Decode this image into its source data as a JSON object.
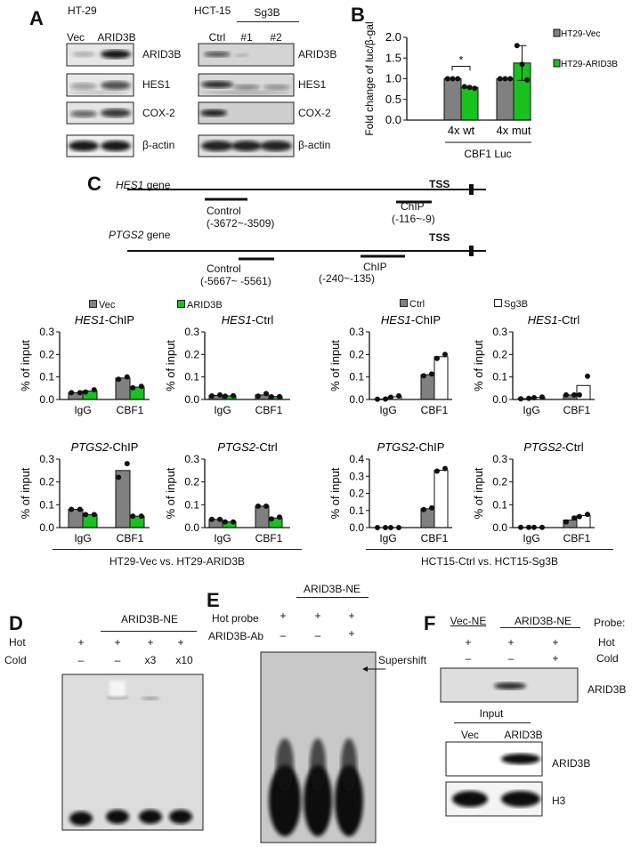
{
  "panel_labels": {
    "a": "A",
    "b": "B",
    "c": "C",
    "d": "D",
    "e": "E",
    "f": "F"
  },
  "panel_a": {
    "left": {
      "cell_line": "HT-29",
      "lanes": [
        "Vec",
        "ARID3B"
      ]
    },
    "right": {
      "cell_line": "HCT-15",
      "group": "Sg3B",
      "lanes": [
        "Ctrl",
        "#1",
        "#2"
      ]
    },
    "proteins": [
      "ARID3B",
      "HES1",
      "COX-2",
      "β-actin"
    ]
  },
  "panel_c": {
    "hes1": {
      "gene": "HES1",
      "suffix": " gene",
      "tss": "TSS",
      "control": "Control",
      "control_range": "(-3672~-3509)",
      "chip": "ChIP",
      "chip_range": "(-116~-9)"
    },
    "ptgs2": {
      "gene": "PTGS2",
      "suffix": " gene",
      "tss": "TSS",
      "control": "Control",
      "control_range": "(-5667~ -5561)",
      "chip": "ChIP",
      "chip_range": "(-240~-135)"
    },
    "legend_left": [
      "Vec",
      "ARID3B"
    ],
    "legend_right": [
      "Ctrl",
      "Sg3B"
    ],
    "group_left": "HT29-Vec vs. HT29-ARID3B",
    "group_right": "HCT15-Ctrl vs. HCT15-Sg3B"
  },
  "panel_d": {
    "group": "ARID3B-NE",
    "row_hot": "Hot",
    "row_cold": "Cold",
    "hot": [
      "+",
      "+",
      "+",
      "+"
    ],
    "cold": [
      "–",
      "–",
      "x3",
      "x10"
    ]
  },
  "panel_e": {
    "group": "ARID3B-NE",
    "row_hot": "Hot  probe",
    "row_ab": "ARID3B-Ab",
    "hot": [
      "+",
      "+",
      "+"
    ],
    "ab": [
      "–",
      "–",
      "+"
    ],
    "annotation": "Supershift"
  },
  "panel_f": {
    "vec_ne": "Vec-NE",
    "arid_ne": "ARID3B-NE",
    "probe": "Probe:",
    "row_hot": "Hot",
    "row_cold": "Cold",
    "hot": [
      "+",
      "+",
      "+"
    ],
    "cold": [
      "–",
      "–",
      "+"
    ],
    "blot_label": "ARID3B",
    "input": "Input",
    "input_lanes": [
      "Vec",
      "ARID3B"
    ],
    "input_proteins": [
      "ARID3B",
      "H3"
    ]
  },
  "colors": {
    "vec": "#808080",
    "arid3b": "#19c11f",
    "ctrl": "#808080",
    "sg3b": "#ffffff"
  },
  "chart_data": [
    {
      "type": "bar",
      "id": "b",
      "ylabel": "Fold change of luc/β-gal",
      "ylim": [
        0,
        2.0
      ],
      "yticks": [
        "0.0",
        "0.5",
        "1.0",
        "1.5",
        "2.0"
      ],
      "categories": [
        "4x wt",
        "4x mut"
      ],
      "xgroup_label": "CBF1 Luc",
      "legend": "right",
      "series": [
        {
          "name": "HT29-Vec",
          "color": "#808080",
          "values": [
            1.0,
            1.0
          ],
          "points": [
            [
              1,
              1,
              1
            ],
            [
              1,
              1,
              1
            ]
          ]
        },
        {
          "name": "HT29-ARID3B",
          "color": "#19c11f",
          "values": [
            0.79,
            1.38
          ],
          "points": [
            [
              0.81,
              0.79,
              0.77
            ],
            [
              1.8,
              1.35,
              0.97
            ]
          ],
          "error": [
            0,
            0.42
          ]
        }
      ],
      "significance": [
        {
          "category": "4x wt",
          "label": "*"
        }
      ]
    },
    {
      "type": "bar",
      "id": "c1",
      "title": "HES1-ChIP",
      "ylabel": "% of input",
      "ylim": [
        0,
        0.3
      ],
      "yticks": [
        "0.0",
        "0.1",
        "0.2",
        "0.3"
      ],
      "categories": [
        "IgG",
        "CBF1"
      ],
      "series": [
        {
          "name": "Vec",
          "color": "#808080",
          "values": [
            0.03,
            0.095
          ],
          "points": [
            [
              0.03,
              0.03
            ],
            [
              0.09,
              0.1
            ]
          ]
        },
        {
          "name": "ARID3B",
          "color": "#19c11f",
          "values": [
            0.038,
            0.055
          ],
          "points": [
            [
              0.033,
              0.043
            ],
            [
              0.052,
              0.058
            ]
          ]
        }
      ]
    },
    {
      "type": "bar",
      "id": "c2",
      "title": "HES1-Ctrl",
      "ylabel": "% of input",
      "ylim": [
        0,
        0.3
      ],
      "yticks": [
        "0.0",
        "0.1",
        "0.2",
        "0.3"
      ],
      "categories": [
        "IgG",
        "CBF1"
      ],
      "series": [
        {
          "name": "Vec",
          "color": "#808080",
          "values": [
            0.018,
            0.02
          ],
          "points": [
            [
              0.016,
              0.02
            ],
            [
              0.015,
              0.026
            ]
          ]
        },
        {
          "name": "ARID3B",
          "color": "#19c11f",
          "values": [
            0.016,
            0.013
          ],
          "points": [
            [
              0.015,
              0.017
            ],
            [
              0.012,
              0.013
            ]
          ]
        }
      ]
    },
    {
      "type": "bar",
      "id": "c3",
      "title": "HES1-ChIP",
      "ylabel": "% of input",
      "ylim": [
        0,
        0.3
      ],
      "yticks": [
        "0.0",
        "0.1",
        "0.2",
        "0.3"
      ],
      "categories": [
        "IgG",
        "CBF1"
      ],
      "series": [
        {
          "name": "Ctrl",
          "color": "#808080",
          "values": [
            0.002,
            0.11
          ],
          "points": [
            [
              0.001,
              0.002
            ],
            [
              0.105,
              0.113
            ]
          ]
        },
        {
          "name": "Sg3B",
          "color": "#ffffff",
          "values": [
            0.012,
            0.19
          ],
          "points": [
            [
              0.01,
              0.016
            ],
            [
              0.182,
              0.2
            ]
          ]
        }
      ]
    },
    {
      "type": "bar",
      "id": "c4",
      "title": "HES1-Ctrl",
      "ylabel": "% of input",
      "ylim": [
        0,
        0.3
      ],
      "yticks": [
        "0.0",
        "0.1",
        "0.2",
        "0.3"
      ],
      "categories": [
        "IgG",
        "CBF1"
      ],
      "series": [
        {
          "name": "Ctrl",
          "color": "#808080",
          "values": [
            0.004,
            0.02
          ],
          "points": [
            [
              0.003,
              0.005
            ],
            [
              0.02,
              0.02
            ]
          ]
        },
        {
          "name": "Sg3B",
          "color": "#ffffff",
          "values": [
            0.009,
            0.062
          ],
          "points": [
            [
              0.008,
              0.011
            ],
            [
              0.02,
              0.103
            ]
          ]
        }
      ]
    },
    {
      "type": "bar",
      "id": "c5",
      "title": "PTGS2-ChIP",
      "ylabel": "% of input",
      "ylim": [
        0,
        0.3
      ],
      "yticks": [
        "0.0",
        "0.1",
        "0.2",
        "0.3"
      ],
      "categories": [
        "IgG",
        "CBF1"
      ],
      "series": [
        {
          "name": "Vec",
          "color": "#808080",
          "values": [
            0.08,
            0.25
          ],
          "points": [
            [
              0.08,
              0.08
            ],
            [
              0.22,
              0.28
            ]
          ]
        },
        {
          "name": "ARID3B",
          "color": "#19c11f",
          "values": [
            0.057,
            0.05
          ],
          "points": [
            [
              0.057,
              0.057
            ],
            [
              0.05,
              0.05
            ]
          ]
        }
      ]
    },
    {
      "type": "bar",
      "id": "c6",
      "title": "PTGS2-Ctrl",
      "ylabel": "% of input",
      "ylim": [
        0,
        0.3
      ],
      "yticks": [
        "0.0",
        "0.1",
        "0.2",
        "0.3"
      ],
      "categories": [
        "IgG",
        "CBF1"
      ],
      "series": [
        {
          "name": "Vec",
          "color": "#808080",
          "values": [
            0.036,
            0.094
          ],
          "points": [
            [
              0.036,
              0.036
            ],
            [
              0.094,
              0.094
            ]
          ]
        },
        {
          "name": "ARID3B",
          "color": "#19c11f",
          "values": [
            0.025,
            0.042
          ],
          "points": [
            [
              0.025,
              0.025
            ],
            [
              0.038,
              0.046
            ]
          ]
        }
      ]
    },
    {
      "type": "bar",
      "id": "c7",
      "title": "PTGS2-ChIP",
      "ylabel": "% of input",
      "ylim": [
        0,
        0.4
      ],
      "yticks": [
        "0.0",
        "0.1",
        "0.2",
        "0.3",
        "0.4"
      ],
      "categories": [
        "IgG",
        "CBF1"
      ],
      "series": [
        {
          "name": "Ctrl",
          "color": "#808080",
          "values": [
            0.0,
            0.11
          ],
          "points": [
            [
              0.0,
              0.0
            ],
            [
              0.105,
              0.115
            ]
          ]
        },
        {
          "name": "Sg3B",
          "color": "#ffffff",
          "values": [
            0.0,
            0.335
          ],
          "points": [
            [
              0.0,
              0.0
            ],
            [
              0.33,
              0.345
            ]
          ]
        }
      ]
    },
    {
      "type": "bar",
      "id": "c8",
      "title": "PTGS2-Ctrl",
      "ylabel": "% of input",
      "ylim": [
        0,
        0.3
      ],
      "yticks": [
        "0.0",
        "0.1",
        "0.2",
        "0.3"
      ],
      "categories": [
        "IgG",
        "CBF1"
      ],
      "series": [
        {
          "name": "Ctrl",
          "color": "#808080",
          "values": [
            0.001,
            0.033
          ],
          "points": [
            [
              0.001,
              0.001
            ],
            [
              0.025,
              0.042
            ]
          ]
        },
        {
          "name": "Sg3B",
          "color": "#ffffff",
          "values": [
            0.001,
            0.053
          ],
          "points": [
            [
              0.001,
              0.001
            ],
            [
              0.048,
              0.058
            ]
          ]
        }
      ]
    }
  ]
}
